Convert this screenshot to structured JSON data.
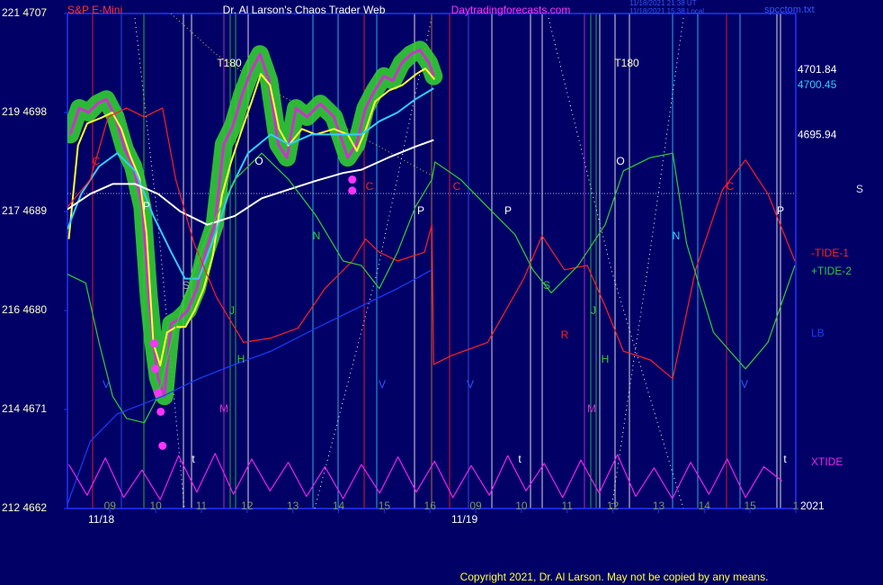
{
  "chart_data": {
    "type": "line",
    "instrument": "S&P E-Mini",
    "title": "Dr. Al Larson's Chaos Trader Web",
    "site": "Daytradingforecasts.com",
    "timestamps": [
      "11/18/2021 21:38 UT",
      "11/18/2021 15:38 Local"
    ],
    "file": "spcctom.txt",
    "copyright": "Copyright 2021, Dr. Al Larson. May not be copied by any means.",
    "year": "2021",
    "dates": [
      "11/18",
      "11/19"
    ],
    "level_label": "S",
    "ylim": [
      4662,
      4707
    ],
    "yticks": [
      {
        "value": 4707,
        "label": "221 4707"
      },
      {
        "value": 4698,
        "label": "219 4698"
      },
      {
        "value": 4689,
        "label": "217 4689"
      },
      {
        "value": 4680,
        "label": "216 4680"
      },
      {
        "value": 4671,
        "label": "214 4671"
      },
      {
        "value": 4662,
        "label": "212 4662"
      }
    ],
    "xlim": [
      0.07,
      16.0
    ],
    "xticks": [
      {
        "value": 1,
        "label": "09"
      },
      {
        "value": 2,
        "label": "10"
      },
      {
        "value": 3,
        "label": "11"
      },
      {
        "value": 4,
        "label": "12"
      },
      {
        "value": 5,
        "label": "13"
      },
      {
        "value": 6,
        "label": "14"
      },
      {
        "value": 7,
        "label": "15"
      },
      {
        "value": 8,
        "label": "16"
      },
      {
        "value": 9,
        "label": "09"
      },
      10,
      11,
      12,
      13,
      14,
      15,
      {
        "value": 16,
        "label": "1"
      }
    ],
    "price_levels": [
      4701.84,
      4700.45,
      4695.94
    ],
    "price_level_colors": [
      "#ffffff",
      "#33ccff",
      "#ffffff"
    ],
    "markers": [
      "C",
      "P",
      "S",
      "J",
      "H",
      "M",
      "V",
      "t",
      "O",
      "N",
      "C",
      "P",
      "V",
      "C",
      "P",
      "V",
      "t",
      "S",
      "R",
      "J",
      "H",
      "M",
      "O",
      "N",
      "C",
      "P",
      "V",
      "t",
      "T180",
      "T180"
    ],
    "series": [
      {
        "style": "glow",
        "color": "#cc33cc",
        "x": [
          0.13,
          0.33,
          0.53,
          0.72,
          0.92,
          1.12,
          1.32,
          1.51,
          1.71,
          1.85,
          1.95,
          2.05,
          2.19,
          2.34,
          2.5,
          2.7,
          2.9,
          3.09,
          3.29,
          3.49,
          3.69,
          3.89,
          4.08,
          4.28,
          4.48,
          4.68,
          4.87,
          5.07,
          5.31,
          5.6,
          5.9,
          6.2,
          6.39,
          6.59,
          6.79,
          6.99,
          7.19,
          7.38,
          7.58,
          7.78,
          7.98,
          8.08
        ],
        "values": [
          4696,
          4698.4,
          4698,
          4698.8,
          4699.2,
          4697.6,
          4694.7,
          4693.1,
          4689.4,
          4681.2,
          4677.1,
          4673.9,
          4672.2,
          4678.8,
          4679.2,
          4680,
          4682,
          4685.3,
          4687.8,
          4695.1,
          4696.8,
          4699.6,
          4701.7,
          4703.3,
          4700.9,
          4695.1,
          4693.9,
          4698.4,
          4697.6,
          4698.8,
          4697.6,
          4693.9,
          4695.1,
          4698.4,
          4700,
          4701.3,
          4700.9,
          4702.5,
          4703.3,
          4703.7,
          4702.5,
          4701.3
        ]
      },
      {
        "style": "line",
        "color": "#ffff33",
        "x": [
          0.1,
          0.3,
          0.5,
          0.8,
          1.05,
          1.25,
          1.45,
          1.65,
          1.8,
          1.95,
          2.1,
          2.25,
          2.45,
          2.65,
          2.85,
          3.05,
          3.25,
          3.45,
          3.65,
          3.85,
          4.1,
          4.3,
          4.5,
          4.7,
          4.9,
          5.2,
          5.5,
          5.9,
          6.2,
          6.4,
          6.6,
          6.8,
          7.1,
          7.4,
          7.7,
          7.9,
          8.1
        ],
        "values": [
          4686.5,
          4695,
          4697,
          4697.5,
          4698,
          4696.5,
          4694,
          4692,
          4687,
          4677,
          4675,
          4678,
          4678.5,
          4678.5,
          4680,
          4682,
          4685,
          4690.5,
          4693.5,
          4696,
          4699,
          4701.5,
          4700.5,
          4696.5,
          4695,
          4696.5,
          4696,
          4696.5,
          4696,
          4694.5,
          4696.5,
          4699,
          4700,
          4700.5,
          4701.5,
          4702,
          4701
        ]
      },
      {
        "style": "line",
        "color": "#33ccff",
        "x": [
          0.07,
          0.37,
          0.76,
          1.16,
          1.55,
          1.95,
          2.34,
          2.64,
          2.94,
          3.23,
          3.63,
          4.02,
          4.52,
          4.91,
          5.41,
          6.1,
          6.5,
          6.89,
          7.29,
          7.68,
          8.08
        ],
        "values": [
          4687.4,
          4690.6,
          4693.1,
          4694.3,
          4692.7,
          4688.6,
          4685.3,
          4682.9,
          4682.9,
          4686.1,
          4691,
          4694.3,
          4696,
          4695.1,
          4696,
          4696,
          4696,
          4697.2,
          4698,
          4699.2,
          4700.2
        ]
      },
      {
        "style": "line",
        "color": "#ffffff",
        "x": [
          0.07,
          0.57,
          1.06,
          1.55,
          2.05,
          2.54,
          3.13,
          3.73,
          4.32,
          4.91,
          5.51,
          6.1,
          6.5,
          7.09,
          7.68,
          8.08
        ],
        "values": [
          4689.2,
          4690.6,
          4691.5,
          4691.5,
          4690.6,
          4689,
          4687.8,
          4688.6,
          4690.2,
          4691,
          4691.8,
          4692.5,
          4692.8,
          4693.9,
          4694.9,
          4695.5
        ]
      },
      {
        "name": "-TIDE-1",
        "style": "line",
        "color": "#ff2020",
        "x": [
          0.07,
          0.57,
          0.96,
          1.36,
          1.75,
          2.15,
          2.44,
          2.84,
          3.33,
          3.92,
          4.52,
          5.11,
          5.7,
          6.3,
          6.59,
          6.89,
          7.29,
          7.88,
          8.04,
          8.08,
          8.47,
          9.26,
          10.05,
          10.45,
          10.94,
          11.44,
          11.83,
          12.23,
          12.82,
          13.31,
          13.81,
          14.4,
          14.9,
          15.39,
          15.98
        ],
        "values": [
          4689.4,
          4691.9,
          4697.6,
          4698.4,
          4697.6,
          4698.4,
          4691.9,
          4686.1,
          4681.2,
          4677.1,
          4677.5,
          4678.4,
          4682,
          4684.5,
          4686.5,
          4685.3,
          4684.5,
          4685.3,
          4687.8,
          4675.1,
          4675.9,
          4677.1,
          4682.9,
          4686.8,
          4683.7,
          4684.1,
          4680.4,
          4676.3,
          4675.5,
          4673.8,
          4683.7,
          4691,
          4693.7,
          4690.6,
          4684.5
        ]
      },
      {
        "name": "+TIDE-2",
        "style": "line",
        "color": "#33cc33",
        "x": [
          0.07,
          0.47,
          0.76,
          1.06,
          1.36,
          1.75,
          2.05,
          2.34,
          2.64,
          3.13,
          3.73,
          4.32,
          4.91,
          5.51,
          6.1,
          6.5,
          6.89,
          7.29,
          7.68,
          8.04,
          8.11,
          8.67,
          9.26,
          9.86,
          10.25,
          10.65,
          11.24,
          11.83,
          12.23,
          12.82,
          13.31,
          13.61,
          14.2,
          14.9,
          15.39,
          15.98
        ],
        "values": [
          4683.3,
          4682.5,
          4677.1,
          4672.2,
          4670.2,
          4669.8,
          4672.2,
          4677.1,
          4681.2,
          4686.9,
          4691.9,
          4694.3,
          4691.9,
          4688.6,
          4684.5,
          4684.1,
          4682,
          4685.3,
          4689.4,
          4691.9,
          4693.5,
          4691.9,
          4689.4,
          4686.9,
          4683.7,
          4681.6,
          4684.1,
          4687.8,
          4692.7,
          4693.9,
          4694.3,
          4686.1,
          4678,
          4674.7,
          4677.1,
          4684.1
        ]
      },
      {
        "name": "LB",
        "style": "line",
        "color": "#1a3cff",
        "x": [
          0.07,
          0.57,
          1.16,
          2.15,
          2.94,
          3.73,
          4.52,
          5.51,
          6.5,
          7.29,
          8.04
        ],
        "values": [
          4662.4,
          4668.1,
          4670.6,
          4672.2,
          4673.8,
          4675.1,
          4676.3,
          4678.4,
          4680.4,
          4682,
          4683.7
        ]
      },
      {
        "name": "XTIDE",
        "style": "line",
        "color": "#ee22ee",
        "x": [
          0.1,
          0.5,
          0.9,
          1.3,
          1.7,
          2.1,
          2.5,
          2.9,
          3.3,
          3.7,
          4.1,
          4.5,
          4.9,
          5.3,
          5.7,
          6.1,
          6.5,
          6.9,
          7.3,
          7.7,
          8.1,
          8.5,
          8.9,
          9.3,
          9.7,
          10.1,
          10.5,
          10.9,
          11.3,
          11.7,
          12.1,
          12.5,
          12.9,
          13.3,
          13.7,
          14.1,
          14.5,
          14.9,
          15.3,
          15.7
        ],
        "values": [
          4666,
          4663.2,
          4666.6,
          4663,
          4665.5,
          4662.8,
          4666.8,
          4663.5,
          4667,
          4663.3,
          4666.5,
          4663.6,
          4666.2,
          4663.1,
          4665.8,
          4662.9,
          4666,
          4663.4,
          4666.7,
          4663.5,
          4666.3,
          4663,
          4665.9,
          4663.2,
          4666.8,
          4663.6,
          4666.1,
          4663,
          4666.4,
          4663.4,
          4666.9,
          4663.1,
          4665.7,
          4662.9,
          4666.2,
          4663.3,
          4666.5,
          4663,
          4665.8,
          4664.5
        ]
      },
      {
        "style": "dots",
        "color": "#ff33ff",
        "x": [
          1.97,
          1.99,
          2.05,
          2.11,
          2.15,
          6.3,
          6.3
        ],
        "values": [
          4677,
          4674.7,
          4672.5,
          4670.8,
          4667.7,
          4691.9,
          4690.9
        ]
      }
    ]
  }
}
